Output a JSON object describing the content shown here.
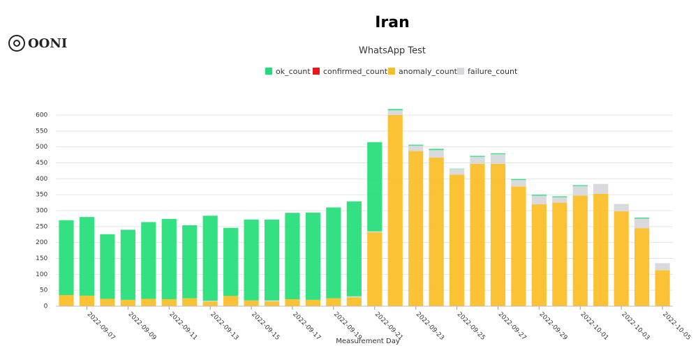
{
  "logo": "OONI",
  "chart_data": {
    "type": "stacked_bar",
    "title": "Iran",
    "subtitle": "WhatsApp Test",
    "x_label": "Measurement Day",
    "categories": [
      null,
      "2022-09-07",
      null,
      "2022-09-09",
      null,
      "2022-09-11",
      null,
      "2022-09-13",
      null,
      "2022-09-15",
      null,
      "2022-09-17",
      null,
      "2022-09-19",
      null,
      "2022-09-21",
      null,
      "2022-09-23",
      null,
      "2022-09-25",
      null,
      "2022-09-27",
      null,
      "2022-09-29",
      null,
      "2022-10-01",
      null,
      "2022-10-03",
      null,
      "2022-10-05"
    ],
    "series": [
      {
        "name": "ok_count",
        "color": "#22dd77",
        "values": [
          235,
          247,
          203,
          220,
          241,
          252,
          229,
          267,
          214,
          254,
          254,
          271,
          274,
          285,
          298,
          280,
          4,
          3,
          4,
          1,
          3,
          3,
          3,
          3,
          3,
          3,
          0,
          0,
          3,
          0
        ]
      },
      {
        "name": "confirmed_count",
        "color": "#f0131e",
        "values": [
          0,
          0,
          0,
          0,
          0,
          0,
          0,
          0,
          0,
          0,
          0,
          0,
          0,
          0,
          0,
          0,
          0,
          0,
          0,
          0,
          0,
          0,
          0,
          0,
          0,
          0,
          0,
          0,
          0,
          0
        ]
      },
      {
        "name": "anomaly_count",
        "color": "#fcbd24",
        "values": [
          35,
          33,
          23,
          20,
          23,
          22,
          25,
          15,
          32,
          18,
          15,
          22,
          20,
          25,
          28,
          232,
          600,
          487,
          467,
          413,
          447,
          447,
          376,
          320,
          325,
          347,
          353,
          298,
          245,
          113
        ]
      },
      {
        "name": "failure_count",
        "color": "#d6d7db",
        "values": [
          0,
          0,
          0,
          0,
          0,
          0,
          0,
          2,
          0,
          0,
          3,
          0,
          0,
          0,
          3,
          3,
          15,
          17,
          23,
          18,
          22,
          30,
          20,
          27,
          17,
          30,
          31,
          23,
          30,
          22
        ]
      }
    ],
    "ylim": [
      0,
      600
    ],
    "yticks": [
      0,
      50,
      100,
      150,
      200,
      250,
      300,
      350,
      400,
      450,
      500,
      550,
      600
    ],
    "grid": true
  }
}
